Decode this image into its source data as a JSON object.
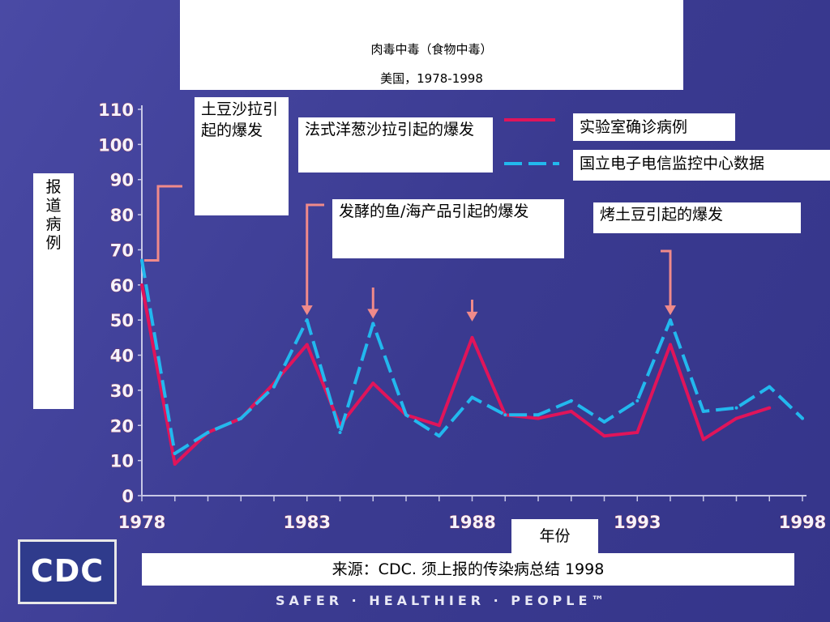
{
  "title": "肉毒中毒（食物中毒）",
  "subtitle": "美国，1978-1998",
  "ylabel": "报道病例",
  "xlabel": "年份",
  "source": "来源：CDC. 须上报的传染病总结 1998",
  "logo_text": "CDC",
  "tagline": "SAFER · HEALTHIER · PEOPLE™",
  "annotations": {
    "potato_salad": "土豆沙拉引起的爆发",
    "french_onion": "法式洋葱沙拉引起的爆发",
    "fermented_fish": "发酵的鱼/海产品引起的爆发",
    "baked_potato": "烤土豆引起的爆发"
  },
  "colors": {
    "lab_series": "#e0145a",
    "nedss_series": "#22b8ee",
    "arrow": "#f08a8a",
    "background": "#3f3f96"
  },
  "chart_data": {
    "type": "line",
    "title": "肉毒中毒（食物中毒）",
    "subtitle": "美国，1978-1998",
    "xlabel": "年份",
    "ylabel": "报道病例",
    "xlim": [
      1978,
      1998
    ],
    "ylim": [
      0,
      110
    ],
    "x_ticks": [
      1978,
      1983,
      1988,
      1993,
      1998
    ],
    "y_ticks": [
      0,
      10,
      20,
      30,
      40,
      50,
      60,
      70,
      80,
      90,
      100,
      110
    ],
    "legend_position": "top-right",
    "series": [
      {
        "name": "实验室确诊病例",
        "style": "solid",
        "x": [
          1978,
          1979,
          1980,
          1981,
          1982,
          1983,
          1984,
          1985,
          1986,
          1987,
          1988,
          1989,
          1990,
          1991,
          1992,
          1993,
          1994,
          1995,
          1996,
          1997
        ],
        "y": [
          60,
          9,
          18,
          22,
          32,
          43,
          20,
          32,
          23,
          20,
          45,
          23,
          22,
          24,
          17,
          18,
          43,
          16,
          22,
          25
        ]
      },
      {
        "name": "国立电子电信监控中心数据",
        "style": "dashed",
        "x": [
          1978,
          1979,
          1980,
          1981,
          1982,
          1983,
          1984,
          1985,
          1986,
          1987,
          1988,
          1989,
          1990,
          1991,
          1992,
          1993,
          1994,
          1995,
          1996,
          1997,
          1998
        ],
        "y": [
          67,
          12,
          18,
          22,
          31,
          50,
          18,
          49,
          23,
          17,
          28,
          23,
          23,
          27,
          21,
          27,
          50,
          24,
          25,
          31,
          22
        ]
      }
    ],
    "annotations": [
      {
        "text": "土豆沙拉引起的爆发",
        "x": 1978,
        "y": 67
      },
      {
        "text": "法式洋葱沙拉引起的爆发",
        "x": 1983,
        "y": 50
      },
      {
        "text": "发酵的鱼/海产品引起的爆发",
        "x": 1985,
        "y": 49
      },
      {
        "text": "发酵的鱼/海产品引起的爆发",
        "x": 1988,
        "y": 45
      },
      {
        "text": "烤土豆引起的爆发",
        "x": 1994,
        "y": 50
      }
    ]
  }
}
